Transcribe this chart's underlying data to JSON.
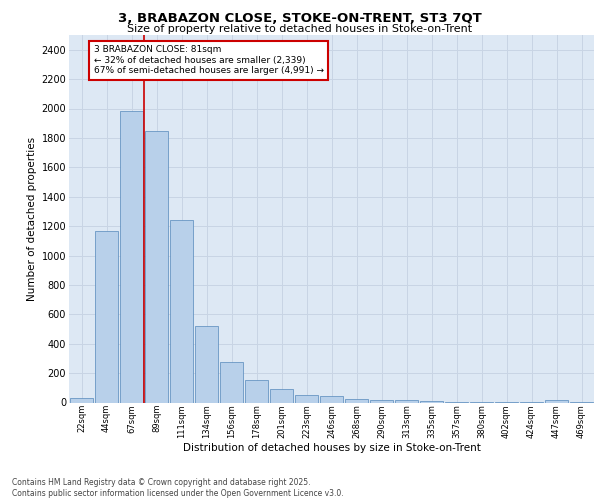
{
  "title1": "3, BRABAZON CLOSE, STOKE-ON-TRENT, ST3 7QT",
  "title2": "Size of property relative to detached houses in Stoke-on-Trent",
  "xlabel": "Distribution of detached houses by size in Stoke-on-Trent",
  "ylabel": "Number of detached properties",
  "categories": [
    "22sqm",
    "44sqm",
    "67sqm",
    "89sqm",
    "111sqm",
    "134sqm",
    "156sqm",
    "178sqm",
    "201sqm",
    "223sqm",
    "246sqm",
    "268sqm",
    "290sqm",
    "313sqm",
    "335sqm",
    "357sqm",
    "380sqm",
    "402sqm",
    "424sqm",
    "447sqm",
    "469sqm"
  ],
  "values": [
    30,
    1170,
    1980,
    1850,
    1240,
    520,
    275,
    155,
    90,
    50,
    42,
    25,
    18,
    14,
    10,
    5,
    3,
    2,
    2,
    15,
    2
  ],
  "bar_color": "#b8d0ea",
  "bar_edge_color": "#5588bb",
  "grid_color": "#c8d4e4",
  "bg_color": "#dde8f4",
  "annotation_text": "3 BRABAZON CLOSE: 81sqm\n← 32% of detached houses are smaller (2,339)\n67% of semi-detached houses are larger (4,991) →",
  "vline_x_index": 2,
  "vline_color": "#cc0000",
  "annotation_box_color": "#cc0000",
  "footer1": "Contains HM Land Registry data © Crown copyright and database right 2025.",
  "footer2": "Contains public sector information licensed under the Open Government Licence v3.0.",
  "ylim": [
    0,
    2500
  ],
  "yticks": [
    0,
    200,
    400,
    600,
    800,
    1000,
    1200,
    1400,
    1600,
    1800,
    2000,
    2200,
    2400
  ]
}
